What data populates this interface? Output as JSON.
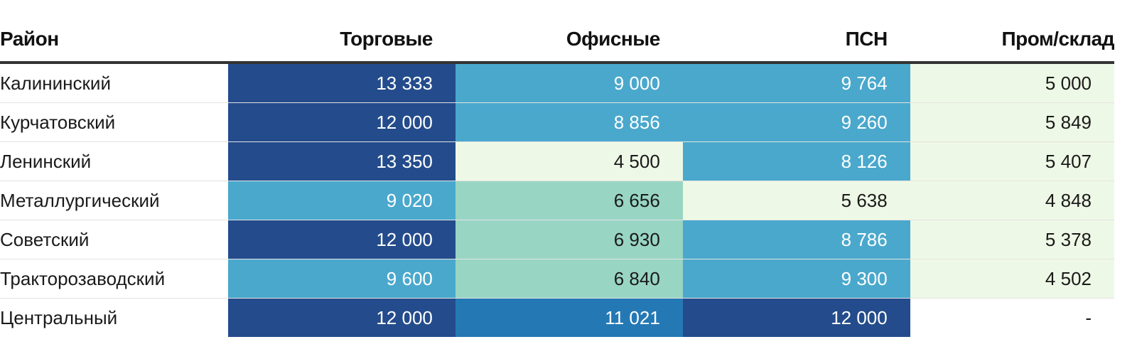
{
  "chart_data": {
    "type": "table",
    "columns": [
      "Район",
      "Торговые",
      "Офисные",
      "ПСН",
      "Пром/склад"
    ],
    "rows": [
      {
        "district": "Калининский",
        "values": [
          "13 333",
          "9 000",
          "9 764",
          "5 000"
        ],
        "numeric": [
          13333,
          9000,
          9764,
          5000
        ]
      },
      {
        "district": "Курчатовский",
        "values": [
          "12 000",
          "8 856",
          "9 260",
          "5 849"
        ],
        "numeric": [
          12000,
          8856,
          9260,
          5849
        ]
      },
      {
        "district": "Ленинский",
        "values": [
          "13 350",
          "4 500",
          "8 126",
          "5 407"
        ],
        "numeric": [
          13350,
          4500,
          8126,
          5407
        ]
      },
      {
        "district": "Металлургический",
        "values": [
          "9 020",
          "6 656",
          "5 638",
          "4 848"
        ],
        "numeric": [
          9020,
          6656,
          5638,
          4848
        ]
      },
      {
        "district": "Советский",
        "values": [
          "12 000",
          "6 930",
          "8 786",
          "5 378"
        ],
        "numeric": [
          12000,
          6930,
          8786,
          5378
        ]
      },
      {
        "district": "Тракторозаводский",
        "values": [
          "9 600",
          "6 840",
          "9 300",
          "4 502"
        ],
        "numeric": [
          9600,
          6840,
          9300,
          4502
        ]
      },
      {
        "district": "Центральный",
        "values": [
          "12 000",
          "11 021",
          "12 000",
          "-"
        ],
        "numeric": [
          12000,
          11021,
          12000,
          null
        ]
      }
    ],
    "color_scale": {
      "very_light": "#eef8e6",
      "light": "#98d5c3",
      "mid": "#4aa8cc",
      "mid_high": "#2479b5",
      "high": "#244c8c"
    },
    "cell_levels": [
      [
        "high",
        "mid",
        "mid",
        "very_light"
      ],
      [
        "high",
        "mid",
        "mid",
        "very_light"
      ],
      [
        "high",
        "very_light",
        "mid",
        "very_light"
      ],
      [
        "mid",
        "light",
        "very_light",
        "very_light"
      ],
      [
        "high",
        "light",
        "mid",
        "very_light"
      ],
      [
        "mid",
        "light",
        "mid",
        "very_light"
      ],
      [
        "high",
        "mid_high",
        "high",
        "none"
      ]
    ]
  }
}
